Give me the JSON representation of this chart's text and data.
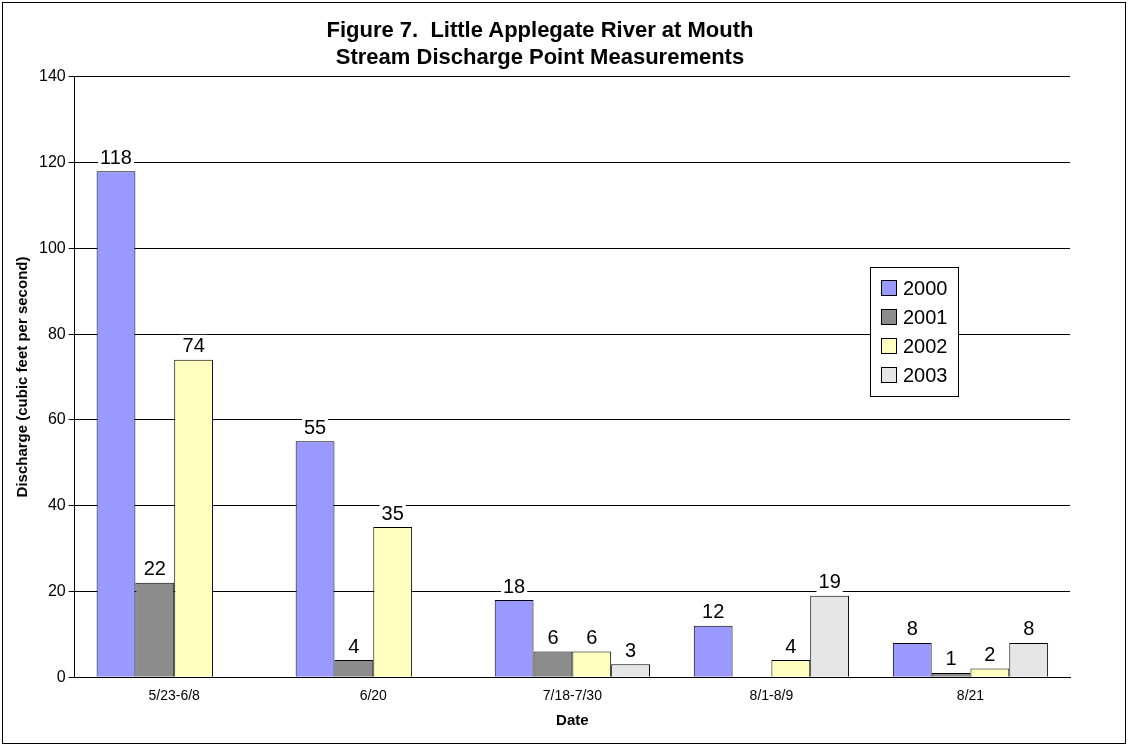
{
  "chart_data": {
    "type": "bar",
    "title": [
      "Figure 7.  Little Applegate River at Mouth",
      "Stream Discharge Point Measurements"
    ],
    "xlabel": "Date",
    "ylabel": "Discharge (cubic feet per second)",
    "categories": [
      "5/23-6/8",
      "6/20",
      "7/18-7/30",
      "8/1-8/9",
      "8/21"
    ],
    "series": [
      {
        "name": "2000",
        "color": "#9999ff",
        "values": [
          118,
          55,
          18,
          12,
          8
        ]
      },
      {
        "name": "2001",
        "color": "#8c8c8c",
        "values": [
          22,
          4,
          6,
          null,
          1
        ]
      },
      {
        "name": "2002",
        "color": "#ffffc0",
        "values": [
          74,
          35,
          6,
          4,
          2
        ]
      },
      {
        "name": "2003",
        "color": "#e6e6e6",
        "values": [
          null,
          null,
          3,
          19,
          8
        ]
      }
    ],
    "ylim": [
      0,
      140
    ],
    "yticks": [
      0,
      20,
      40,
      60,
      80,
      100,
      120,
      140
    ],
    "grid": "y",
    "legend": "right",
    "data_labels": true
  }
}
